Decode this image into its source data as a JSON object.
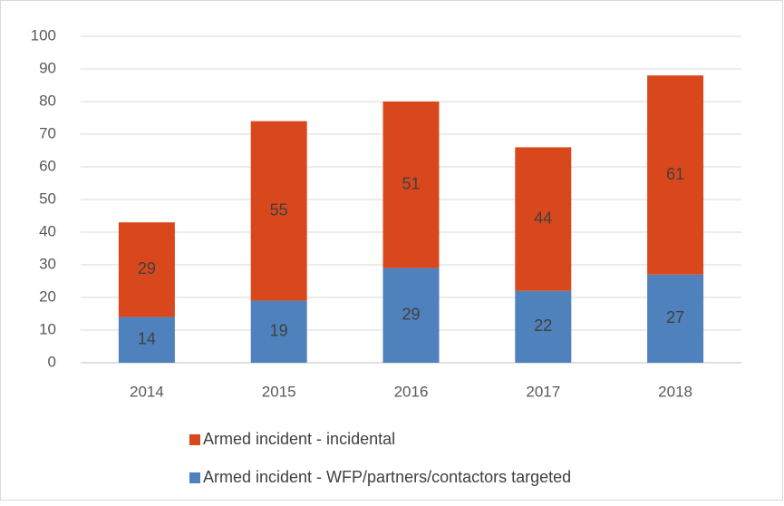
{
  "chart_data": {
    "type": "stacked_bar",
    "categories": [
      "2014",
      "2015",
      "2016",
      "2017",
      "2018"
    ],
    "series": [
      {
        "name": "Armed incident - WFP/partners/contactors targeted",
        "color": "#4f81bd",
        "values": [
          14,
          19,
          29,
          22,
          27
        ]
      },
      {
        "name": "Armed incident - incidental",
        "color": "#d9481c",
        "values": [
          29,
          55,
          51,
          44,
          61
        ]
      }
    ],
    "ylim": [
      0,
      100
    ],
    "yticks": [
      0,
      10,
      20,
      30,
      40,
      50,
      60,
      70,
      80,
      90,
      100
    ],
    "grid": true,
    "legend": "bottom"
  }
}
